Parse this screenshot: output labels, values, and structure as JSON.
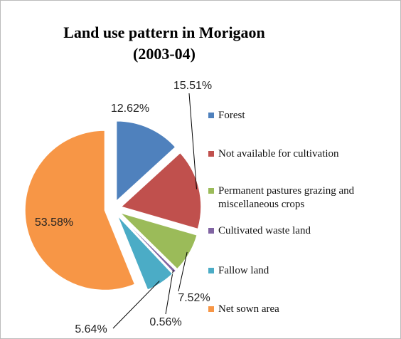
{
  "chart_data": {
    "type": "pie",
    "title": "Land use pattern in Morigaon (2003-04)",
    "categories": [
      "Forest",
      "Not available for cultivation",
      "Permanent pastures grazing and miscellaneous crops",
      "Cultivated waste land",
      "Fallow land",
      "Net sown area"
    ],
    "values": [
      12.62,
      15.51,
      7.52,
      0.56,
      5.64,
      53.58
    ],
    "value_labels": [
      "12.62%",
      "15.51%",
      "7.52%",
      "0.56%",
      "5.64%",
      "53.58%"
    ],
    "colors": [
      "#4f81bd",
      "#c0504d",
      "#9bbb59",
      "#8064a2",
      "#4bacc6",
      "#f79646"
    ],
    "legend": "right"
  }
}
